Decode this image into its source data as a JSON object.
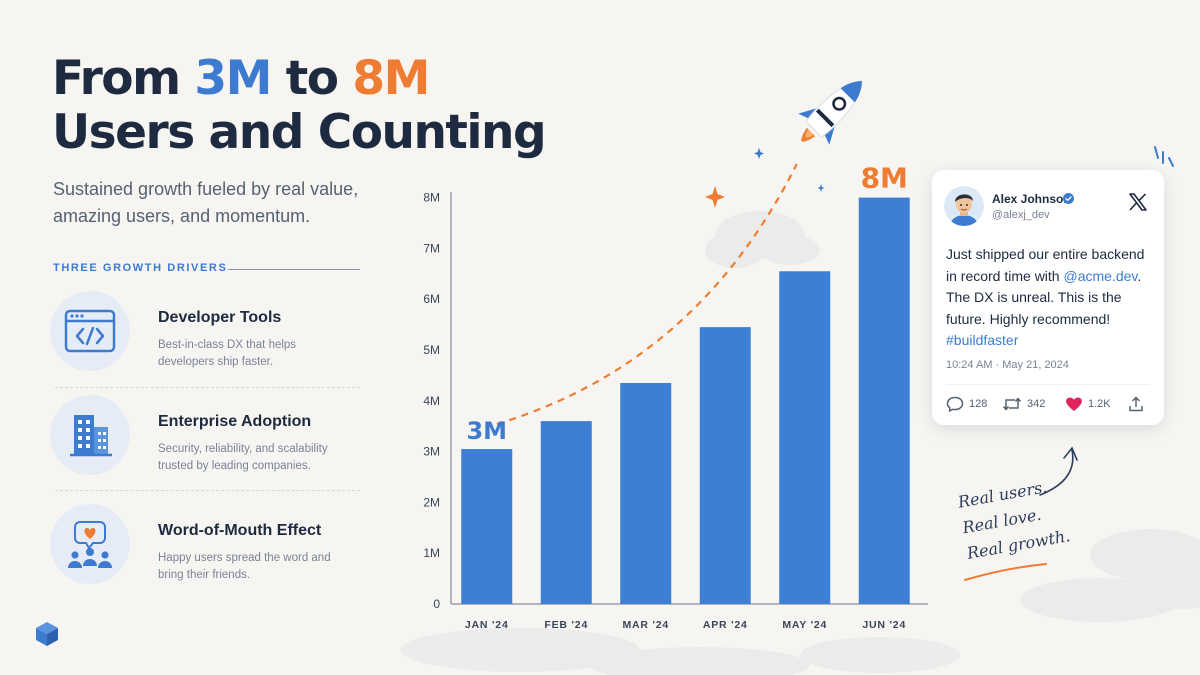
{
  "headline": {
    "part1": "From ",
    "from_value": "3M",
    "part2": " to ",
    "to_value": "8M",
    "line2": "Users and Counting"
  },
  "subtitle": "Sustained growth fueled by real value, amazing users, and momentum.",
  "drivers_heading": "THREE GROWTH DRIVERS",
  "drivers": [
    {
      "title": "Developer Tools",
      "description": "Best-in-class DX that helps developers ship faster.",
      "icon": "code-window-icon"
    },
    {
      "title": "Enterprise Adoption",
      "description": "Security, reliability, and scalability trusted by leading companies.",
      "icon": "building-icon"
    },
    {
      "title": "Word-of-Mouth Effect",
      "description": "Happy users spread the word and bring their friends.",
      "icon": "people-heart-icon"
    }
  ],
  "chart_data": {
    "type": "bar",
    "categories": [
      "JAN '24",
      "FEB '24",
      "MAR '24",
      "APR '24",
      "MAY '24",
      "JUN '24"
    ],
    "values": [
      3.05,
      3.6,
      4.35,
      5.45,
      6.55,
      8.0
    ],
    "y_ticks": [
      "0",
      "1M",
      "2M",
      "3M",
      "4M",
      "5M",
      "6M",
      "7M",
      "8M"
    ],
    "ylim": [
      0,
      8.5
    ],
    "unit": "M",
    "start_label": "3M",
    "end_label": "8M",
    "bar_color": "#3d7fd4",
    "trend_color": "#ee7d33",
    "grid": false
  },
  "tweet": {
    "name": "Alex Johnson",
    "handle": "@alexj_dev",
    "text_line1": "Just shipped our entire backend in record time with ",
    "mention": "@acme.dev",
    "text_line2": ". The DX is unreal. This is the future. Highly recommend! ",
    "hashtag": "#buildfaster",
    "timestamp": "10:24 AM · May 21, 2024",
    "replies": "128",
    "retweets": "342",
    "likes": "1.2K"
  },
  "handwritten": [
    "Real users.",
    "Real love.",
    "Real growth."
  ],
  "colors": {
    "navy": "#1d2a3f",
    "blue": "#3c7bcf",
    "orange": "#ee7d33",
    "background": "#f6f5f2"
  }
}
